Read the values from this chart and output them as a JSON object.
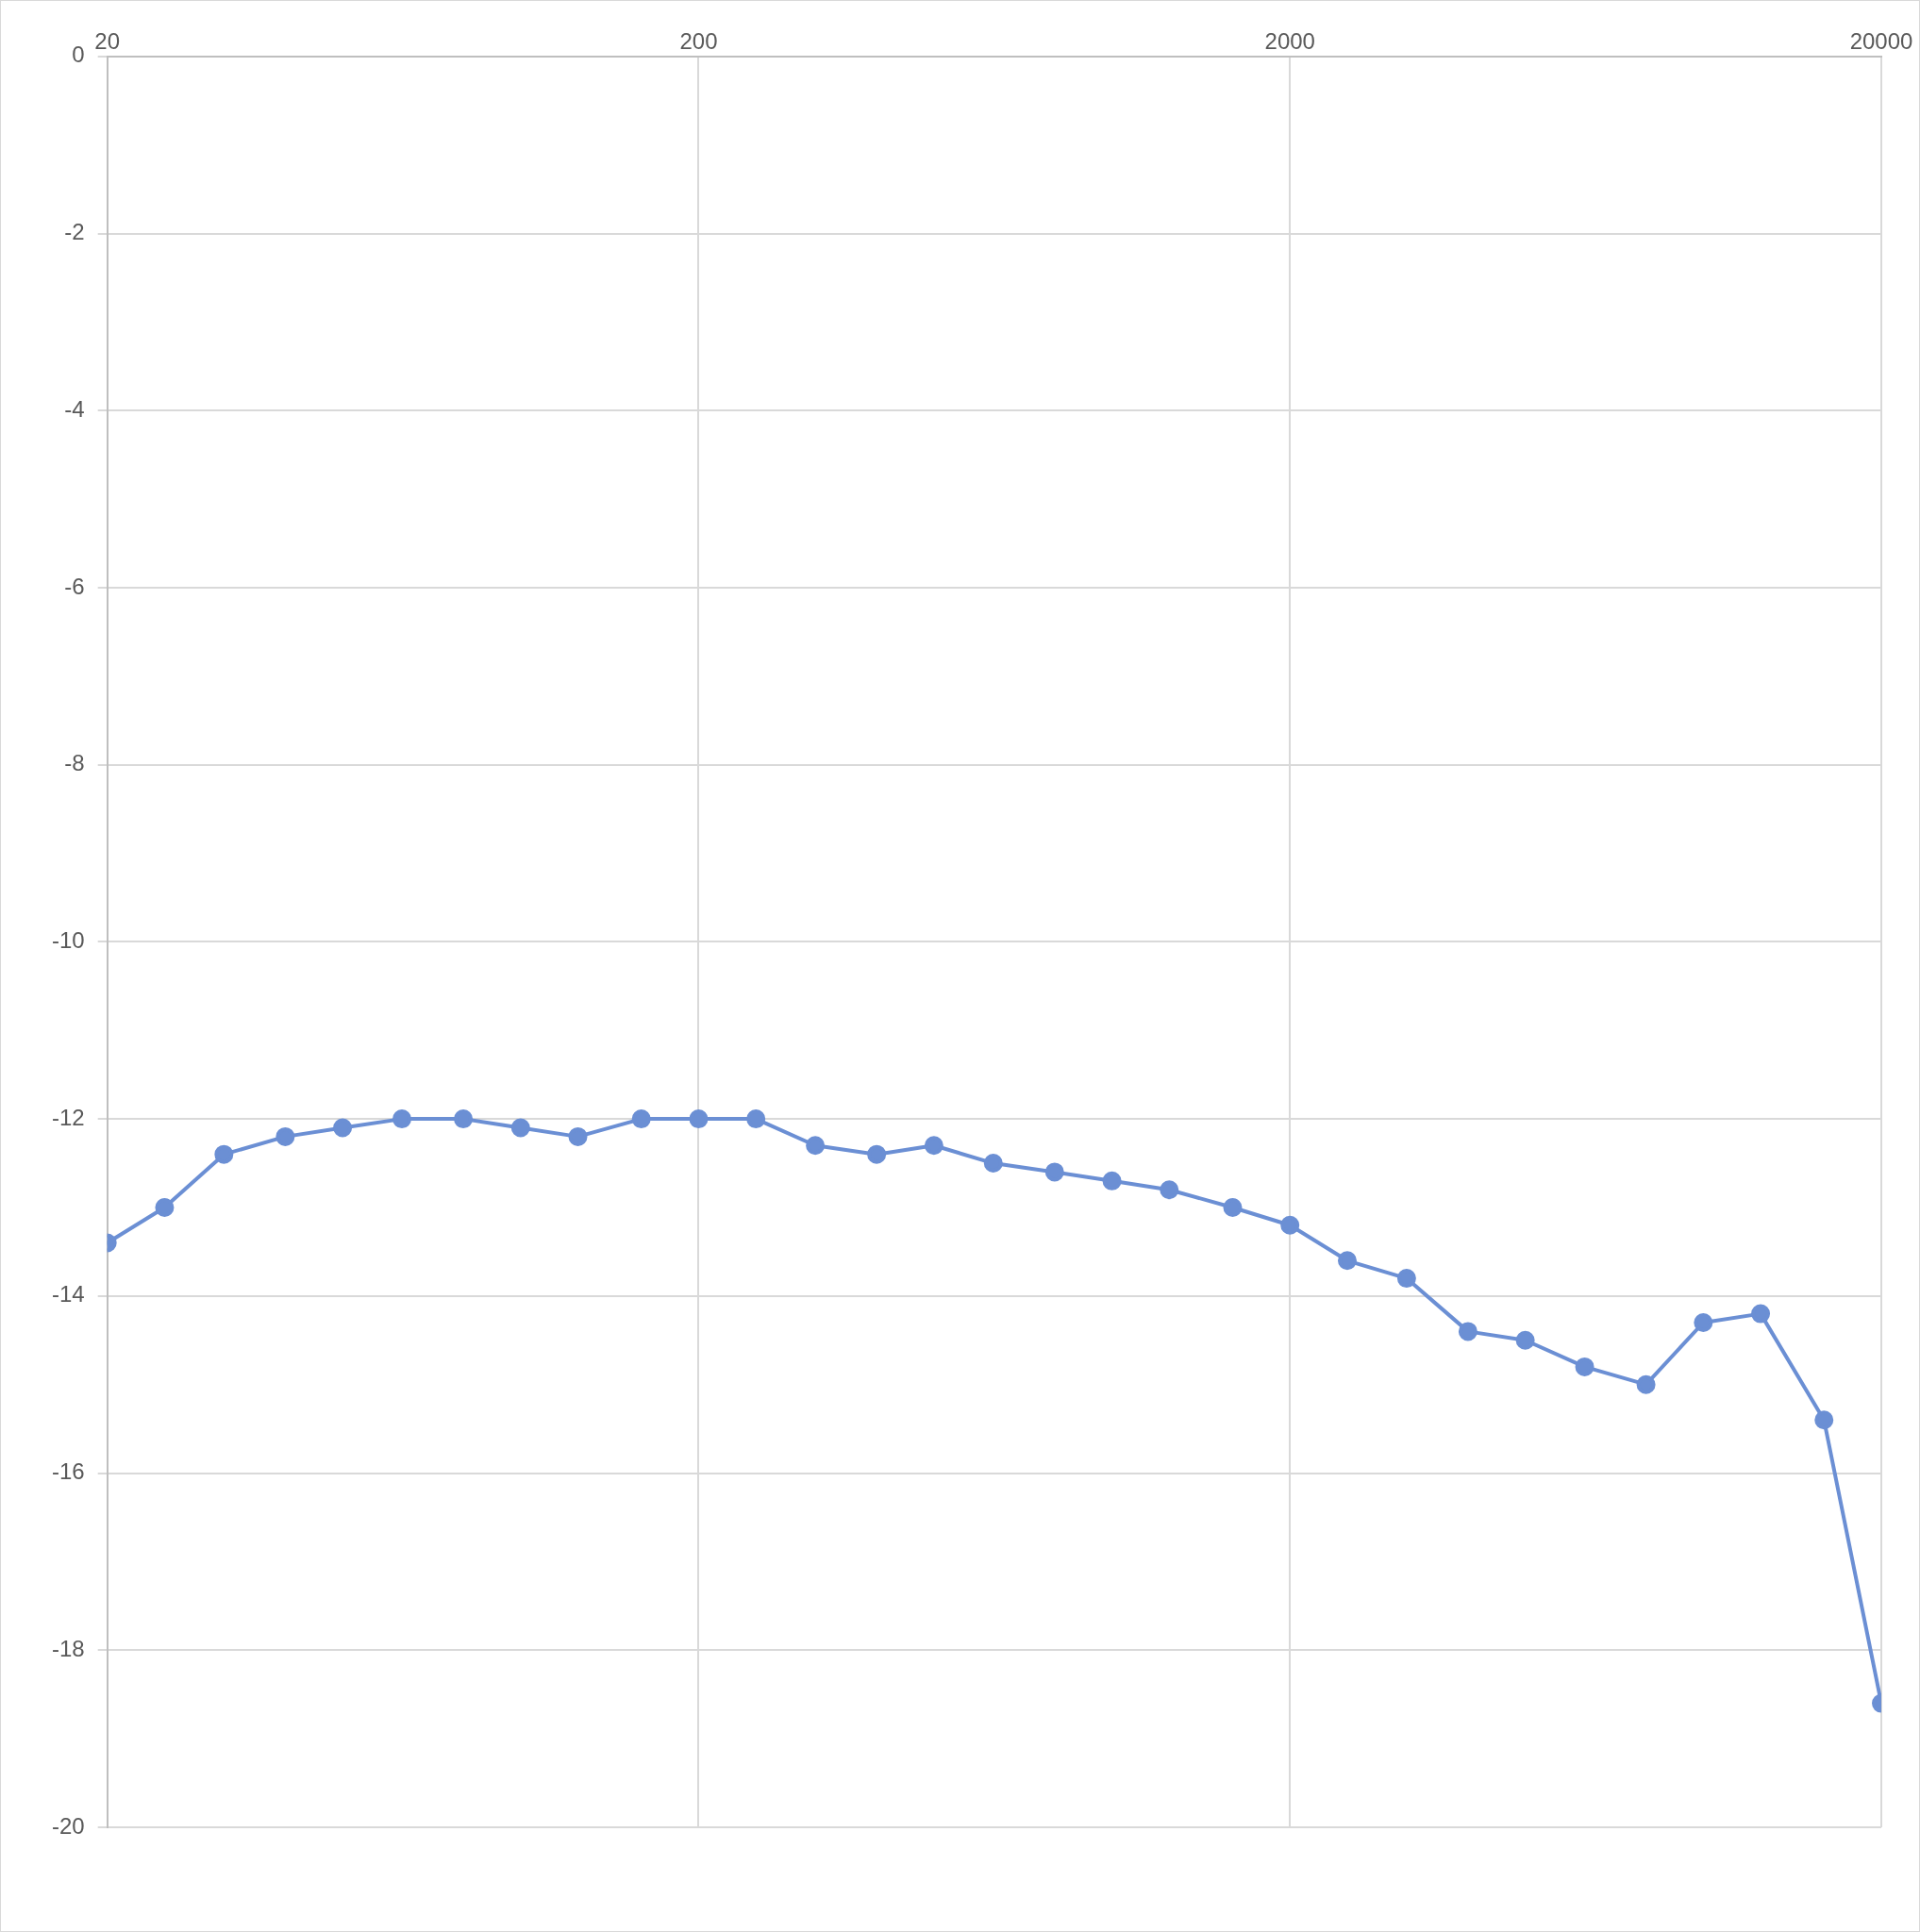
{
  "chart_data": {
    "type": "line",
    "x": [
      20,
      25,
      31.5,
      40,
      50,
      63,
      80,
      100,
      125,
      160,
      200,
      250,
      315,
      400,
      500,
      630,
      800,
      1000,
      1250,
      1600,
      2000,
      2500,
      3150,
      4000,
      5000,
      6300,
      8000,
      10000,
      12500,
      16000,
      20000
    ],
    "series": [
      {
        "color": "#6b8fd4",
        "values": [
          -13.4,
          -13.0,
          -12.4,
          -12.2,
          -12.1,
          -12.0,
          -12.0,
          -12.1,
          -12.2,
          -12.0,
          -12.0,
          -12.0,
          -12.3,
          -12.4,
          -12.3,
          -12.5,
          -12.6,
          -12.7,
          -12.8,
          -13.0,
          -13.2,
          -13.6,
          -13.8,
          -14.4,
          -14.5,
          -14.8,
          -15.0,
          -14.3,
          -14.2,
          -15.4,
          -18.6
        ]
      }
    ],
    "log": "x",
    "xlim": [
      20,
      20000
    ],
    "xticks": [
      20,
      200,
      2000,
      20000
    ],
    "ylim": [
      -20,
      0
    ],
    "yticks": [
      -20,
      -18,
      -16,
      -14,
      -12,
      -10,
      -8,
      -6,
      -4,
      -2,
      0
    ],
    "grid": true,
    "marker": "circle",
    "line_style": "solid"
  }
}
